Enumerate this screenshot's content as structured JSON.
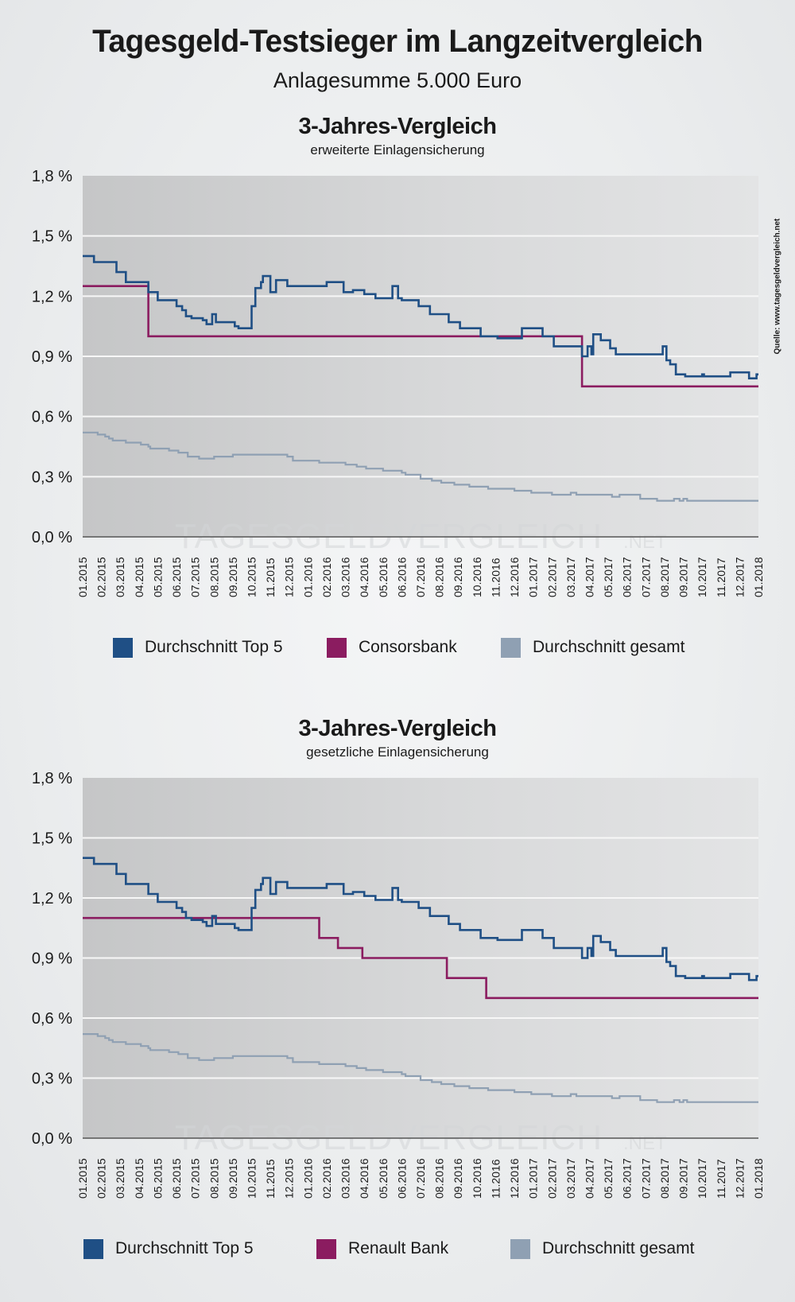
{
  "header": {
    "title": "Tagesgeld-Testsieger im Langzeitvergleich",
    "subtitle": "Anlagesumme 5.000 Euro",
    "source": "Quelle: www.tagesgeldvergleich.net",
    "watermark": "TAGESGELDVERGLEICH",
    "watermark_suffix": ".NET"
  },
  "colors": {
    "top5": "#1f4f85",
    "bank": "#8b1c60",
    "gesamt": "#8fa0b3"
  },
  "chart_data": [
    {
      "type": "line",
      "title": "3-Jahres-Vergleich",
      "subtitle": "erweiterte Einlagensicherung",
      "xlabel": "",
      "ylabel": "",
      "ylim": [
        0,
        1.8
      ],
      "yticks": [
        0,
        0.3,
        0.6,
        0.9,
        1.2,
        1.5,
        1.8
      ],
      "ytick_labels": [
        "0,0 %",
        "0,3 %",
        "0,6 %",
        "0,9 %",
        "1,2 %",
        "1,5 %",
        "1,8 %"
      ],
      "x_unit": "months since 01.2015",
      "xlim": [
        0,
        36
      ],
      "xtick_labels": [
        "01.2015",
        "02.2015",
        "03.2015",
        "04.2015",
        "05.2015",
        "06.2015",
        "07.2015",
        "08.2015",
        "09.2015",
        "10.2015",
        "11.2015",
        "12.2015",
        "01.2016",
        "02.2016",
        "03.2016",
        "04.2016",
        "05.2016",
        "06.2016",
        "07.2016",
        "08.2016",
        "09.2016",
        "10.2016",
        "11.2016",
        "12.2016",
        "01.2017",
        "02.2017",
        "03.2017",
        "04.2017",
        "05.2017",
        "06.2017",
        "07.2017",
        "08.2017",
        "09.2017",
        "10.2017",
        "11.2017",
        "12.2017",
        "01.2018"
      ],
      "grid": true,
      "legend": "bottom",
      "step": true,
      "series": [
        {
          "name": "Durchschnitt Top 5",
          "color_key": "top5",
          "points": [
            [
              0,
              1.4
            ],
            [
              0.6,
              1.37
            ],
            [
              1.8,
              1.32
            ],
            [
              2.3,
              1.27
            ],
            [
              3.5,
              1.22
            ],
            [
              4.0,
              1.18
            ],
            [
              5.0,
              1.15
            ],
            [
              5.3,
              1.13
            ],
            [
              5.5,
              1.1
            ],
            [
              5.8,
              1.09
            ],
            [
              6.4,
              1.08
            ],
            [
              6.6,
              1.06
            ],
            [
              6.9,
              1.11
            ],
            [
              7.1,
              1.07
            ],
            [
              8.1,
              1.05
            ],
            [
              8.3,
              1.04
            ],
            [
              9.0,
              1.15
            ],
            [
              9.2,
              1.24
            ],
            [
              9.5,
              1.27
            ],
            [
              9.6,
              1.3
            ],
            [
              10.0,
              1.22
            ],
            [
              10.3,
              1.28
            ],
            [
              10.9,
              1.25
            ],
            [
              13.0,
              1.27
            ],
            [
              13.9,
              1.22
            ],
            [
              14.4,
              1.23
            ],
            [
              15.0,
              1.21
            ],
            [
              15.6,
              1.19
            ],
            [
              16.5,
              1.25
            ],
            [
              16.8,
              1.19
            ],
            [
              17.0,
              1.18
            ],
            [
              17.9,
              1.15
            ],
            [
              18.5,
              1.11
            ],
            [
              19.5,
              1.07
            ],
            [
              20.1,
              1.04
            ],
            [
              21.2,
              1.0
            ],
            [
              22.1,
              0.99
            ],
            [
              23.4,
              1.04
            ],
            [
              24.5,
              1.0
            ],
            [
              25.1,
              0.95
            ],
            [
              26.6,
              0.9
            ],
            [
              26.9,
              0.95
            ],
            [
              27.1,
              0.91
            ],
            [
              27.2,
              1.01
            ],
            [
              27.6,
              0.98
            ],
            [
              28.1,
              0.94
            ],
            [
              28.4,
              0.91
            ],
            [
              30.9,
              0.95
            ],
            [
              31.1,
              0.88
            ],
            [
              31.3,
              0.86
            ],
            [
              31.6,
              0.81
            ],
            [
              32.1,
              0.8
            ],
            [
              33.0,
              0.81
            ],
            [
              33.1,
              0.8
            ],
            [
              34.5,
              0.82
            ],
            [
              35.5,
              0.79
            ],
            [
              35.9,
              0.81
            ],
            [
              36,
              0.81
            ]
          ]
        },
        {
          "name": "Consorsbank",
          "color_key": "bank",
          "points": [
            [
              0,
              1.25
            ],
            [
              3.5,
              1.0
            ],
            [
              26.6,
              0.75
            ],
            [
              36,
              0.75
            ]
          ]
        },
        {
          "name": "Durchschnitt gesamt",
          "color_key": "gesamt",
          "points": [
            [
              0,
              0.52
            ],
            [
              0.8,
              0.51
            ],
            [
              1.2,
              0.5
            ],
            [
              1.4,
              0.49
            ],
            [
              1.6,
              0.48
            ],
            [
              2.3,
              0.47
            ],
            [
              3.1,
              0.46
            ],
            [
              3.5,
              0.45
            ],
            [
              3.6,
              0.44
            ],
            [
              4.6,
              0.43
            ],
            [
              5.1,
              0.42
            ],
            [
              5.6,
              0.4
            ],
            [
              6.2,
              0.39
            ],
            [
              7.0,
              0.4
            ],
            [
              8.0,
              0.41
            ],
            [
              10.9,
              0.4
            ],
            [
              11.2,
              0.38
            ],
            [
              12.6,
              0.37
            ],
            [
              14.0,
              0.36
            ],
            [
              14.6,
              0.35
            ],
            [
              15.1,
              0.34
            ],
            [
              16.0,
              0.33
            ],
            [
              17.0,
              0.32
            ],
            [
              17.2,
              0.31
            ],
            [
              18.0,
              0.29
            ],
            [
              18.6,
              0.28
            ],
            [
              19.1,
              0.27
            ],
            [
              19.8,
              0.26
            ],
            [
              20.6,
              0.25
            ],
            [
              21.6,
              0.24
            ],
            [
              23.0,
              0.23
            ],
            [
              23.9,
              0.22
            ],
            [
              25.0,
              0.21
            ],
            [
              26.0,
              0.22
            ],
            [
              26.3,
              0.21
            ],
            [
              28.2,
              0.2
            ],
            [
              28.6,
              0.21
            ],
            [
              29.7,
              0.19
            ],
            [
              30.6,
              0.18
            ],
            [
              31.5,
              0.19
            ],
            [
              31.8,
              0.18
            ],
            [
              32.0,
              0.19
            ],
            [
              32.2,
              0.18
            ],
            [
              36,
              0.18
            ]
          ]
        }
      ]
    },
    {
      "type": "line",
      "title": "3-Jahres-Vergleich",
      "subtitle": "gesetzliche Einlagensicherung",
      "xlabel": "",
      "ylabel": "",
      "ylim": [
        0,
        1.8
      ],
      "yticks": [
        0,
        0.3,
        0.6,
        0.9,
        1.2,
        1.5,
        1.8
      ],
      "ytick_labels": [
        "0,0 %",
        "0,3 %",
        "0,6 %",
        "0,9 %",
        "1,2 %",
        "1,5 %",
        "1,8 %"
      ],
      "x_unit": "months since 01.2015",
      "xlim": [
        0,
        36
      ],
      "xtick_labels": [
        "01.2015",
        "02.2015",
        "03.2015",
        "04.2015",
        "05.2015",
        "06.2015",
        "07.2015",
        "08.2015",
        "09.2015",
        "10.2015",
        "11.2015",
        "12.2015",
        "01.2016",
        "02.2016",
        "03.2016",
        "04.2016",
        "05.2016",
        "06.2016",
        "07.2016",
        "08.2016",
        "09.2016",
        "10.2016",
        "11.2016",
        "12.2016",
        "01.2017",
        "02.2017",
        "03.2017",
        "04.2017",
        "05.2017",
        "06.2017",
        "07.2017",
        "08.2017",
        "09.2017",
        "10.2017",
        "11.2017",
        "12.2017",
        "01.2018"
      ],
      "grid": true,
      "legend": "bottom",
      "step": true,
      "series": [
        {
          "name": "Durchschnitt Top 5",
          "color_key": "top5",
          "points": [
            [
              0,
              1.4
            ],
            [
              0.6,
              1.37
            ],
            [
              1.8,
              1.32
            ],
            [
              2.3,
              1.27
            ],
            [
              3.5,
              1.22
            ],
            [
              4.0,
              1.18
            ],
            [
              5.0,
              1.15
            ],
            [
              5.3,
              1.13
            ],
            [
              5.5,
              1.1
            ],
            [
              5.8,
              1.09
            ],
            [
              6.4,
              1.08
            ],
            [
              6.6,
              1.06
            ],
            [
              6.9,
              1.11
            ],
            [
              7.1,
              1.07
            ],
            [
              8.1,
              1.05
            ],
            [
              8.3,
              1.04
            ],
            [
              9.0,
              1.15
            ],
            [
              9.2,
              1.24
            ],
            [
              9.5,
              1.27
            ],
            [
              9.6,
              1.3
            ],
            [
              10.0,
              1.22
            ],
            [
              10.3,
              1.28
            ],
            [
              10.9,
              1.25
            ],
            [
              13.0,
              1.27
            ],
            [
              13.9,
              1.22
            ],
            [
              14.4,
              1.23
            ],
            [
              15.0,
              1.21
            ],
            [
              15.6,
              1.19
            ],
            [
              16.5,
              1.25
            ],
            [
              16.8,
              1.19
            ],
            [
              17.0,
              1.18
            ],
            [
              17.9,
              1.15
            ],
            [
              18.5,
              1.11
            ],
            [
              19.5,
              1.07
            ],
            [
              20.1,
              1.04
            ],
            [
              21.2,
              1.0
            ],
            [
              22.1,
              0.99
            ],
            [
              23.4,
              1.04
            ],
            [
              24.5,
              1.0
            ],
            [
              25.1,
              0.95
            ],
            [
              26.6,
              0.9
            ],
            [
              26.9,
              0.95
            ],
            [
              27.1,
              0.91
            ],
            [
              27.2,
              1.01
            ],
            [
              27.6,
              0.98
            ],
            [
              28.1,
              0.94
            ],
            [
              28.4,
              0.91
            ],
            [
              30.9,
              0.95
            ],
            [
              31.1,
              0.88
            ],
            [
              31.3,
              0.86
            ],
            [
              31.6,
              0.81
            ],
            [
              32.1,
              0.8
            ],
            [
              33.0,
              0.81
            ],
            [
              33.1,
              0.8
            ],
            [
              34.5,
              0.82
            ],
            [
              35.5,
              0.79
            ],
            [
              35.9,
              0.81
            ],
            [
              36,
              0.81
            ]
          ]
        },
        {
          "name": "Renault Bank",
          "color_key": "bank",
          "points": [
            [
              0,
              1.1
            ],
            [
              12.6,
              1.0
            ],
            [
              13.6,
              0.95
            ],
            [
              14.9,
              0.9
            ],
            [
              19.4,
              0.8
            ],
            [
              21.5,
              0.7
            ],
            [
              36,
              0.7
            ]
          ]
        },
        {
          "name": "Durchschnitt gesamt",
          "color_key": "gesamt",
          "points": [
            [
              0,
              0.52
            ],
            [
              0.8,
              0.51
            ],
            [
              1.2,
              0.5
            ],
            [
              1.4,
              0.49
            ],
            [
              1.6,
              0.48
            ],
            [
              2.3,
              0.47
            ],
            [
              3.1,
              0.46
            ],
            [
              3.5,
              0.45
            ],
            [
              3.6,
              0.44
            ],
            [
              4.6,
              0.43
            ],
            [
              5.1,
              0.42
            ],
            [
              5.6,
              0.4
            ],
            [
              6.2,
              0.39
            ],
            [
              7.0,
              0.4
            ],
            [
              8.0,
              0.41
            ],
            [
              10.9,
              0.4
            ],
            [
              11.2,
              0.38
            ],
            [
              12.6,
              0.37
            ],
            [
              14.0,
              0.36
            ],
            [
              14.6,
              0.35
            ],
            [
              15.1,
              0.34
            ],
            [
              16.0,
              0.33
            ],
            [
              17.0,
              0.32
            ],
            [
              17.2,
              0.31
            ],
            [
              18.0,
              0.29
            ],
            [
              18.6,
              0.28
            ],
            [
              19.1,
              0.27
            ],
            [
              19.8,
              0.26
            ],
            [
              20.6,
              0.25
            ],
            [
              21.6,
              0.24
            ],
            [
              23.0,
              0.23
            ],
            [
              23.9,
              0.22
            ],
            [
              25.0,
              0.21
            ],
            [
              26.0,
              0.22
            ],
            [
              26.3,
              0.21
            ],
            [
              28.2,
              0.2
            ],
            [
              28.6,
              0.21
            ],
            [
              29.7,
              0.19
            ],
            [
              30.6,
              0.18
            ],
            [
              31.5,
              0.19
            ],
            [
              31.8,
              0.18
            ],
            [
              32.0,
              0.19
            ],
            [
              32.2,
              0.18
            ],
            [
              36,
              0.18
            ]
          ]
        }
      ]
    }
  ]
}
